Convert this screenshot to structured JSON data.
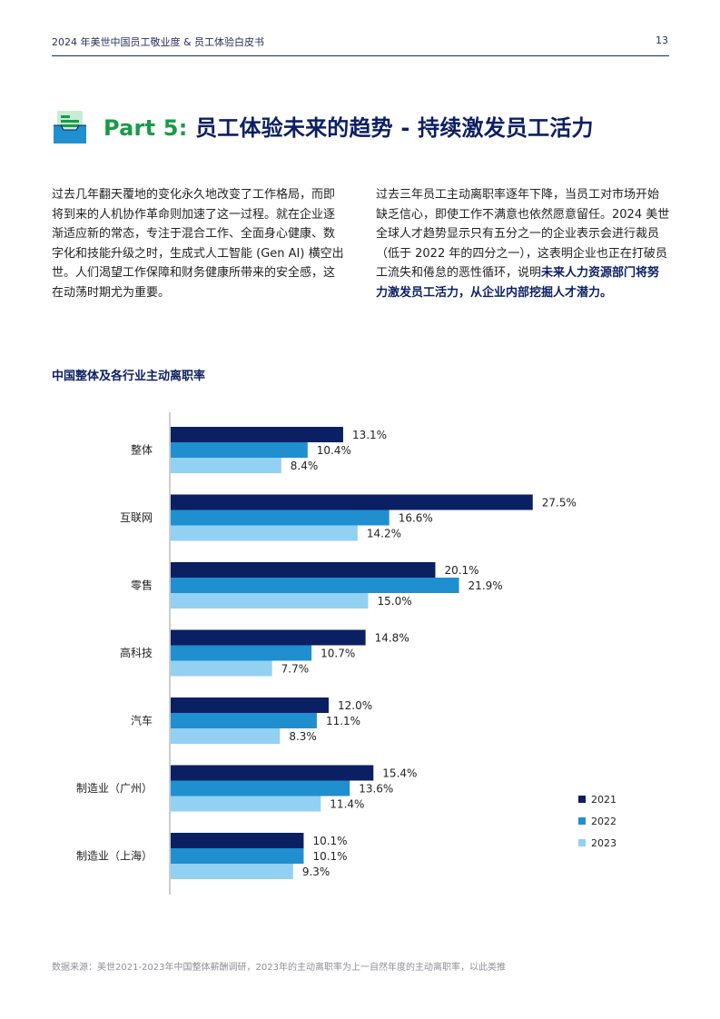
{
  "header": {
    "title": "2024 年美世中国员工敬业度 & 员工体验白皮书",
    "page_number": "13"
  },
  "section": {
    "icon": "document-tray-icon",
    "part_label": "Part 5:",
    "title": "员工体验未来的趋势 - 持续激发员工活力"
  },
  "body": {
    "left_paragraph": "过去几年翻天覆地的变化永久地改变了工作格局，而即将到来的人机协作革命则加速了这一过程。就在企业逐渐适应新的常态，专注于混合工作、全面身心健康、数字化和技能升级之时，生成式人工智能 (Gen AI) 横空出世。人们渴望工作保障和财务健康所带来的安全感，这在动荡时期尤为重要。",
    "right_paragraph_plain": "过去三年员工主动离职率逐年下降，当员工对市场开始缺乏信心，即使工作不满意也依然愿意留任。2024 美世全球人才趋势显示只有五分之一的企业表示会进行裁员（低于 2022 年的四分之一），这表明企业也正在打破员工流失和倦怠的恶性循环，说明",
    "right_paragraph_bold": "未来人力资源部门将努力激发员工活力，从企业内部挖掘人才潜力。"
  },
  "chart_title": "中国整体及各行业主动离职率",
  "chart_data": {
    "type": "bar",
    "orientation": "horizontal",
    "categories": [
      "整体",
      "互联网",
      "零售",
      "高科技",
      "汽车",
      "制造业（广州）",
      "制造业（上海）"
    ],
    "series": [
      {
        "name": "2021",
        "color": "#0b1f63",
        "values": [
          13.1,
          27.5,
          20.1,
          14.8,
          12.0,
          15.4,
          10.1
        ],
        "labels": [
          "13.1%",
          "27.5%",
          "20.1%",
          "14.8%",
          "12.0%",
          "15.4%",
          "10.1%"
        ]
      },
      {
        "name": "2022",
        "color": "#1f8fd0",
        "values": [
          10.4,
          16.6,
          21.9,
          10.7,
          11.1,
          13.6,
          10.1
        ],
        "labels": [
          "10.4%",
          "16.6%",
          "21.9%",
          "10.7%",
          "11.1%",
          "13.6%",
          "10.1%"
        ]
      },
      {
        "name": "2023",
        "color": "#92d1f1",
        "values": [
          8.4,
          14.2,
          15.0,
          7.7,
          8.3,
          11.4,
          9.3
        ],
        "labels": [
          "8.4%",
          "14.2%",
          "15.0%",
          "7.7%",
          "8.3%",
          "11.4%",
          "9.3%"
        ]
      }
    ],
    "xlim": [
      0,
      30
    ],
    "legend": "bottom-right",
    "grid": false
  },
  "footnote": "数据来源：美世2021-2023年中国整体薪酬调研，2023年的主动离职率为上一自然年度的主动离职率，以此类推"
}
